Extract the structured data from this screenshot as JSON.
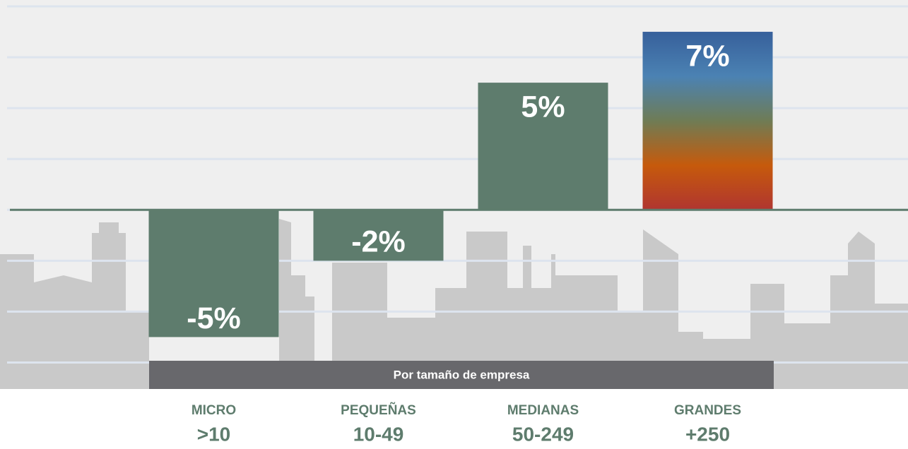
{
  "chart_data": {
    "type": "bar",
    "categories": [
      "MICRO",
      "PEQUEÑAS",
      "MEDIANAS",
      "GRANDES"
    ],
    "category_sublabels": [
      ">10",
      "10-49",
      "50-249",
      "+250"
    ],
    "values": [
      -5,
      -2,
      5,
      7
    ],
    "value_labels": [
      "-5%",
      "-2%",
      "5%",
      "7%"
    ],
    "color": "#5e7c6d",
    "highlight_index": 3,
    "highlight_gradient": [
      "#37609b",
      "#4b82b3",
      "#6f7c55",
      "#c65a0c",
      "#b03530"
    ],
    "axis_label": "Por tamaño de empresa",
    "ylim": [
      -9.4,
      8.25
    ],
    "yticks": [
      -6,
      -4,
      -2,
      0,
      2,
      4,
      6,
      8
    ],
    "grid": true,
    "grid_color": "#dde4ee",
    "zero_line_color": "#5e7c6d"
  }
}
